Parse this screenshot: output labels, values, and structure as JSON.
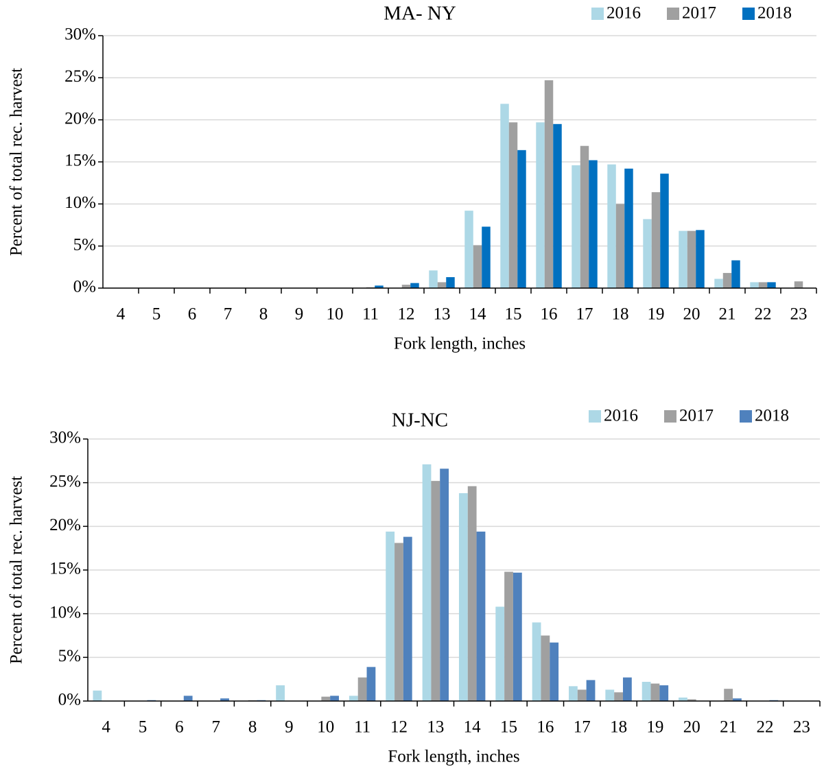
{
  "chart_data": [
    {
      "type": "bar",
      "title": "MA- NY",
      "x_label": "Fork length, inches",
      "y_label": "Percent of total rec. harvest",
      "categories": [
        "4",
        "5",
        "6",
        "7",
        "8",
        "9",
        "10",
        "11",
        "12",
        "13",
        "14",
        "15",
        "16",
        "17",
        "18",
        "19",
        "20",
        "21",
        "22",
        "23"
      ],
      "series": [
        {
          "name": "2016",
          "color": "#add8e6",
          "values": [
            0,
            0,
            0,
            0,
            0,
            0,
            0,
            0,
            0,
            2.1,
            9.2,
            21.9,
            19.7,
            14.6,
            14.7,
            8.2,
            6.8,
            1.1,
            0.7,
            0
          ]
        },
        {
          "name": "2017",
          "color": "#a0a0a0",
          "values": [
            0,
            0,
            0,
            0,
            0,
            0,
            0,
            0.1,
            0.4,
            0.7,
            5.1,
            19.7,
            24.7,
            16.9,
            10.0,
            11.4,
            6.8,
            1.8,
            0.7,
            0.8
          ]
        },
        {
          "name": "2018",
          "color": "#0070c0",
          "values": [
            0,
            0,
            0,
            0,
            0,
            0,
            0,
            0.3,
            0.6,
            1.3,
            7.3,
            16.4,
            19.5,
            15.2,
            14.2,
            13.6,
            6.9,
            3.3,
            0.7,
            0
          ]
        }
      ],
      "ylim": [
        0,
        30
      ],
      "yticks": [
        {
          "value": 0,
          "label": "0%"
        },
        {
          "value": 5,
          "label": "5%"
        },
        {
          "value": 10,
          "label": "10%"
        },
        {
          "value": 15,
          "label": "15%"
        },
        {
          "value": 20,
          "label": "20%"
        },
        {
          "value": 25,
          "label": "25%"
        },
        {
          "value": 30,
          "label": "30%"
        }
      ],
      "grid": true,
      "legend": "top-right"
    },
    {
      "type": "bar",
      "title": "NJ-NC",
      "x_label": "Fork length, inches",
      "y_label": "Percent of total rec. harvest",
      "categories": [
        "4",
        "5",
        "6",
        "7",
        "8",
        "9",
        "10",
        "11",
        "12",
        "13",
        "14",
        "15",
        "16",
        "17",
        "18",
        "19",
        "20",
        "21",
        "22",
        "23"
      ],
      "series": [
        {
          "name": "2016",
          "color": "#add8e6",
          "values": [
            1.2,
            0,
            0,
            0,
            0,
            1.8,
            0,
            0.6,
            19.4,
            27.1,
            23.8,
            10.8,
            9.0,
            1.7,
            1.3,
            2.2,
            0.4,
            0,
            0,
            0
          ]
        },
        {
          "name": "2017",
          "color": "#a0a0a0",
          "values": [
            0,
            0,
            0,
            0,
            0.1,
            0,
            0.5,
            2.7,
            18.1,
            25.2,
            24.6,
            14.8,
            7.5,
            1.3,
            1.0,
            2.0,
            0.2,
            1.4,
            0,
            0
          ]
        },
        {
          "name": "2018",
          "color": "#4f81bd",
          "values": [
            0,
            0.1,
            0.6,
            0.3,
            0.1,
            0,
            0.6,
            3.9,
            18.8,
            26.6,
            19.4,
            14.7,
            6.7,
            2.4,
            2.7,
            1.8,
            0,
            0.3,
            0.1,
            0
          ]
        }
      ],
      "ylim": [
        0,
        30
      ],
      "yticks": [
        {
          "value": 0,
          "label": "0%"
        },
        {
          "value": 5,
          "label": "5%"
        },
        {
          "value": 10,
          "label": "10%"
        },
        {
          "value": 15,
          "label": "15%"
        },
        {
          "value": 20,
          "label": "20%"
        },
        {
          "value": 25,
          "label": "25%"
        },
        {
          "value": 30,
          "label": "30%"
        }
      ],
      "grid": true,
      "legend": "top-right"
    }
  ]
}
